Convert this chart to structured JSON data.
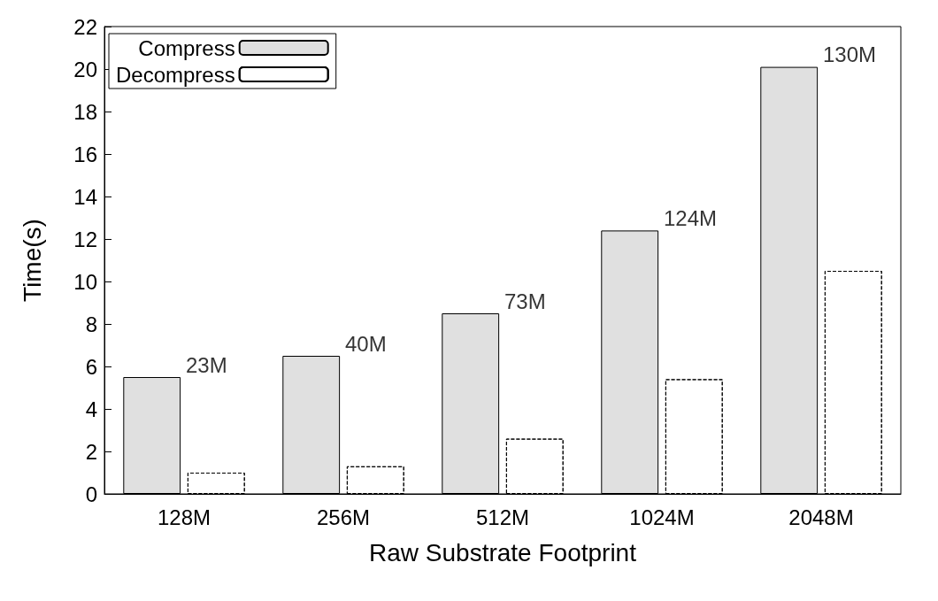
{
  "chart_data": {
    "type": "bar",
    "xlabel": "Raw Substrate Footprint",
    "ylabel": "Time(s)",
    "categories": [
      "128M",
      "256M",
      "512M",
      "1024M",
      "2048M"
    ],
    "series": [
      {
        "name": "Compress",
        "color": "#e0e0e0",
        "values": [
          5.5,
          6.5,
          8.5,
          12.4,
          20.1
        ]
      },
      {
        "name": "Decompress",
        "color": "#ffffff",
        "values": [
          1.0,
          1.3,
          2.6,
          5.4,
          10.5
        ]
      }
    ],
    "ylim": [
      0,
      22
    ],
    "yticks": [
      0,
      2,
      4,
      6,
      8,
      10,
      12,
      14,
      16,
      18,
      20,
      22
    ],
    "annotations": [
      {
        "text": "23M",
        "x": "128M",
        "y": 5.5
      },
      {
        "text": "40M",
        "x": "256M",
        "y": 6.5
      },
      {
        "text": "73M",
        "x": "512M",
        "y": 8.5
      },
      {
        "text": "124M",
        "x": "1024M",
        "y": 12.4
      },
      {
        "text": "130M",
        "x": "2048M",
        "y": 20.1
      }
    ],
    "grid": false,
    "legend": "top left"
  }
}
